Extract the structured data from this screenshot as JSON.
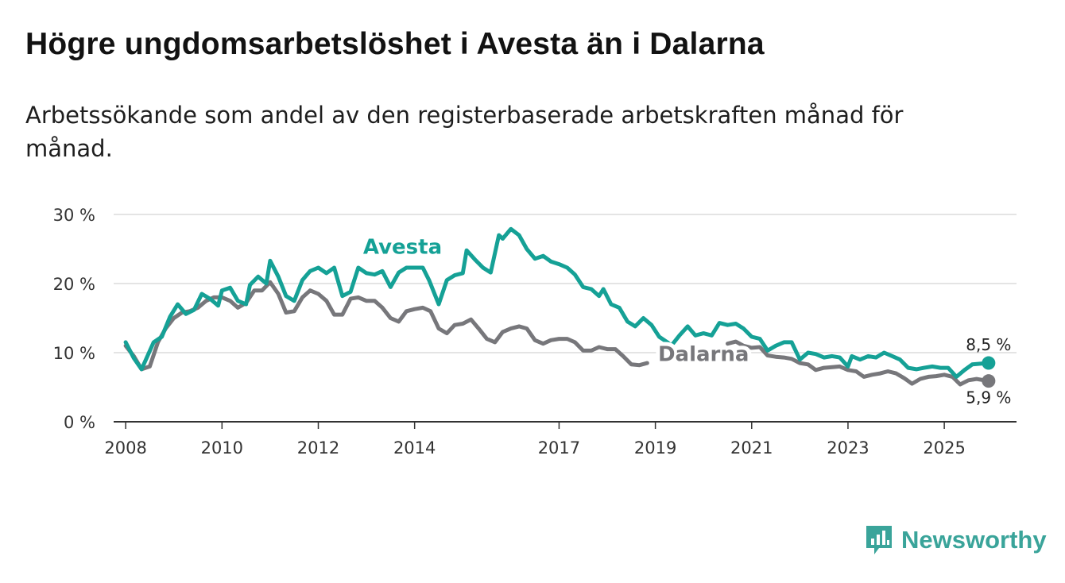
{
  "header": {
    "title": "Högre ungdomsarbetslöshet i Avesta än i Dalarna",
    "subtitle": "Arbetssökande som andel av den registerbaserade arbetskraften månad för månad."
  },
  "brand": {
    "name": "Newsworthy",
    "icon": "bar-chart-logo-icon",
    "color": "#3aa49a"
  },
  "chart_data": {
    "type": "line",
    "title": "Högre ungdomsarbetslöshet i Avesta än i Dalarna",
    "subtitle": "Arbetssökande som andel av den registerbaserade arbetskraften månad för månad.",
    "xlabel": "",
    "ylabel": "",
    "xlim": [
      2007.75,
      2026.5
    ],
    "ylim": [
      0,
      30
    ],
    "grid": true,
    "y_ticks": [
      0,
      10,
      20,
      30
    ],
    "y_tick_labels": [
      "0 %",
      "10 %",
      "20 %",
      "30 %"
    ],
    "x_ticks": [
      2008,
      2010,
      2012,
      2014,
      2017,
      2019,
      2021,
      2023,
      2025
    ],
    "x_tick_labels": [
      "2008",
      "2010",
      "2012",
      "2014",
      "2017",
      "2019",
      "2021",
      "2023",
      "2025"
    ],
    "series": [
      {
        "name": "Avesta",
        "color": "#15a196",
        "end_label": "8,5 %",
        "points": [
          [
            2008.0,
            11.5
          ],
          [
            2008.17,
            9.2
          ],
          [
            2008.33,
            7.6
          ],
          [
            2008.42,
            9.0
          ],
          [
            2008.58,
            11.5
          ],
          [
            2008.75,
            12.3
          ],
          [
            2008.92,
            15.2
          ],
          [
            2009.08,
            17.0
          ],
          [
            2009.25,
            15.6
          ],
          [
            2009.42,
            16.2
          ],
          [
            2009.58,
            18.5
          ],
          [
            2009.75,
            17.8
          ],
          [
            2009.92,
            16.8
          ],
          [
            2010.0,
            19.0
          ],
          [
            2010.17,
            19.4
          ],
          [
            2010.33,
            17.5
          ],
          [
            2010.5,
            17.0
          ],
          [
            2010.58,
            19.8
          ],
          [
            2010.75,
            21.0
          ],
          [
            2010.92,
            20.0
          ],
          [
            2011.0,
            23.3
          ],
          [
            2011.17,
            21.0
          ],
          [
            2011.33,
            18.2
          ],
          [
            2011.5,
            17.5
          ],
          [
            2011.67,
            20.5
          ],
          [
            2011.83,
            21.8
          ],
          [
            2012.0,
            22.3
          ],
          [
            2012.17,
            21.5
          ],
          [
            2012.33,
            22.3
          ],
          [
            2012.5,
            18.2
          ],
          [
            2012.67,
            18.8
          ],
          [
            2012.83,
            22.3
          ],
          [
            2013.0,
            21.5
          ],
          [
            2013.17,
            21.3
          ],
          [
            2013.33,
            21.8
          ],
          [
            2013.5,
            19.5
          ],
          [
            2013.67,
            21.6
          ],
          [
            2013.83,
            22.3
          ],
          [
            2014.17,
            22.3
          ],
          [
            2014.3,
            20.5
          ],
          [
            2014.5,
            17.0
          ],
          [
            2014.67,
            20.5
          ],
          [
            2014.83,
            21.2
          ],
          [
            2015.0,
            21.5
          ],
          [
            2015.08,
            24.8
          ],
          [
            2015.25,
            23.5
          ],
          [
            2015.42,
            22.3
          ],
          [
            2015.58,
            21.6
          ],
          [
            2015.75,
            27.0
          ],
          [
            2015.83,
            26.5
          ],
          [
            2016.0,
            27.9
          ],
          [
            2016.17,
            27.0
          ],
          [
            2016.33,
            25.0
          ],
          [
            2016.5,
            23.6
          ],
          [
            2016.67,
            24.0
          ],
          [
            2016.83,
            23.2
          ],
          [
            2017.0,
            22.8
          ],
          [
            2017.17,
            22.3
          ],
          [
            2017.33,
            21.3
          ],
          [
            2017.5,
            19.5
          ],
          [
            2017.67,
            19.2
          ],
          [
            2017.83,
            18.2
          ],
          [
            2017.92,
            19.2
          ],
          [
            2018.08,
            17.0
          ],
          [
            2018.25,
            16.5
          ],
          [
            2018.42,
            14.5
          ],
          [
            2018.58,
            13.8
          ],
          [
            2018.75,
            15.0
          ],
          [
            2018.92,
            14.0
          ],
          [
            2019.08,
            12.3
          ],
          [
            2019.25,
            11.5
          ],
          [
            2019.33,
            11.0
          ],
          [
            2019.5,
            12.5
          ],
          [
            2019.67,
            13.8
          ],
          [
            2019.83,
            12.5
          ],
          [
            2020.0,
            12.8
          ],
          [
            2020.17,
            12.5
          ],
          [
            2020.33,
            14.3
          ],
          [
            2020.5,
            14.0
          ],
          [
            2020.67,
            14.2
          ],
          [
            2020.83,
            13.5
          ],
          [
            2021.0,
            12.3
          ],
          [
            2021.17,
            12.0
          ],
          [
            2021.33,
            10.3
          ],
          [
            2021.5,
            11.0
          ],
          [
            2021.67,
            11.5
          ],
          [
            2021.83,
            11.5
          ],
          [
            2022.0,
            9.0
          ],
          [
            2022.17,
            10.0
          ],
          [
            2022.33,
            9.8
          ],
          [
            2022.5,
            9.3
          ],
          [
            2022.67,
            9.5
          ],
          [
            2022.83,
            9.3
          ],
          [
            2023.0,
            8.0
          ],
          [
            2023.08,
            9.5
          ],
          [
            2023.25,
            9.0
          ],
          [
            2023.42,
            9.5
          ],
          [
            2023.58,
            9.3
          ],
          [
            2023.75,
            10.0
          ],
          [
            2023.92,
            9.5
          ],
          [
            2024.08,
            9.0
          ],
          [
            2024.25,
            7.8
          ],
          [
            2024.42,
            7.6
          ],
          [
            2024.58,
            7.8
          ],
          [
            2024.75,
            8.0
          ],
          [
            2024.92,
            7.8
          ],
          [
            2025.08,
            7.8
          ],
          [
            2025.25,
            6.5
          ],
          [
            2025.42,
            7.5
          ],
          [
            2025.58,
            8.3
          ],
          [
            2025.75,
            8.4
          ],
          [
            2025.92,
            8.5
          ]
        ]
      },
      {
        "name": "Dalarna",
        "color": "#77777b",
        "end_label": "5,9 %",
        "points": [
          [
            2008.0,
            11.0
          ],
          [
            2008.17,
            9.5
          ],
          [
            2008.33,
            7.6
          ],
          [
            2008.5,
            8.0
          ],
          [
            2008.67,
            11.5
          ],
          [
            2008.83,
            13.5
          ],
          [
            2009.0,
            15.0
          ],
          [
            2009.17,
            15.8
          ],
          [
            2009.33,
            16.0
          ],
          [
            2009.5,
            16.5
          ],
          [
            2009.67,
            17.5
          ],
          [
            2009.83,
            18.0
          ],
          [
            2010.0,
            18.0
          ],
          [
            2010.17,
            17.5
          ],
          [
            2010.33,
            16.5
          ],
          [
            2010.5,
            17.2
          ],
          [
            2010.67,
            19.0
          ],
          [
            2010.83,
            19.0
          ],
          [
            2011.0,
            20.2
          ],
          [
            2011.17,
            18.5
          ],
          [
            2011.33,
            15.8
          ],
          [
            2011.5,
            16.0
          ],
          [
            2011.67,
            18.0
          ],
          [
            2011.83,
            19.0
          ],
          [
            2012.0,
            18.5
          ],
          [
            2012.17,
            17.5
          ],
          [
            2012.33,
            15.5
          ],
          [
            2012.5,
            15.5
          ],
          [
            2012.67,
            17.8
          ],
          [
            2012.83,
            18.0
          ],
          [
            2013.0,
            17.5
          ],
          [
            2013.17,
            17.5
          ],
          [
            2013.33,
            16.5
          ],
          [
            2013.5,
            15.0
          ],
          [
            2013.67,
            14.5
          ],
          [
            2013.83,
            16.0
          ],
          [
            2014.0,
            16.3
          ],
          [
            2014.17,
            16.5
          ],
          [
            2014.33,
            16.0
          ],
          [
            2014.5,
            13.5
          ],
          [
            2014.67,
            12.8
          ],
          [
            2014.83,
            14.0
          ],
          [
            2015.0,
            14.2
          ],
          [
            2015.17,
            14.8
          ],
          [
            2015.33,
            13.5
          ],
          [
            2015.5,
            12.0
          ],
          [
            2015.67,
            11.5
          ],
          [
            2015.83,
            13.0
          ],
          [
            2016.0,
            13.5
          ],
          [
            2016.17,
            13.8
          ],
          [
            2016.33,
            13.5
          ],
          [
            2016.5,
            11.8
          ],
          [
            2016.67,
            11.3
          ],
          [
            2016.83,
            11.8
          ],
          [
            2017.0,
            12.0
          ],
          [
            2017.17,
            12.0
          ],
          [
            2017.33,
            11.5
          ],
          [
            2017.5,
            10.3
          ],
          [
            2017.67,
            10.3
          ],
          [
            2017.83,
            10.8
          ],
          [
            2018.0,
            10.5
          ],
          [
            2018.17,
            10.5
          ],
          [
            2018.33,
            9.5
          ],
          [
            2018.5,
            8.3
          ],
          [
            2018.67,
            8.2
          ],
          [
            2018.83,
            8.5
          ]
        ],
        "points2": [
          [
            2020.5,
            11.3
          ],
          [
            2020.67,
            11.6
          ],
          [
            2020.83,
            11.0
          ],
          [
            2021.0,
            10.7
          ],
          [
            2021.17,
            10.8
          ],
          [
            2021.33,
            9.6
          ],
          [
            2021.5,
            9.4
          ],
          [
            2021.67,
            9.3
          ],
          [
            2021.83,
            9.1
          ],
          [
            2022.0,
            8.5
          ],
          [
            2022.17,
            8.3
          ],
          [
            2022.33,
            7.5
          ],
          [
            2022.5,
            7.8
          ],
          [
            2022.67,
            7.9
          ],
          [
            2022.83,
            8.0
          ],
          [
            2023.0,
            7.5
          ],
          [
            2023.17,
            7.3
          ],
          [
            2023.33,
            6.5
          ],
          [
            2023.5,
            6.8
          ],
          [
            2023.67,
            7.0
          ],
          [
            2023.83,
            7.3
          ],
          [
            2024.0,
            7.0
          ],
          [
            2024.17,
            6.3
          ],
          [
            2024.33,
            5.5
          ],
          [
            2024.5,
            6.2
          ],
          [
            2024.67,
            6.5
          ],
          [
            2024.83,
            6.6
          ],
          [
            2025.0,
            6.8
          ],
          [
            2025.17,
            6.5
          ],
          [
            2025.33,
            5.4
          ],
          [
            2025.5,
            6.0
          ],
          [
            2025.67,
            6.2
          ],
          [
            2025.92,
            5.9
          ]
        ]
      }
    ],
    "annotations": [
      {
        "text": "Avesta",
        "x": 2013.75,
        "y": 24.3,
        "color": "#15a196"
      },
      {
        "text": "Dalarna",
        "x": 2020.0,
        "y": 8.8,
        "color": "#77777b"
      }
    ]
  }
}
